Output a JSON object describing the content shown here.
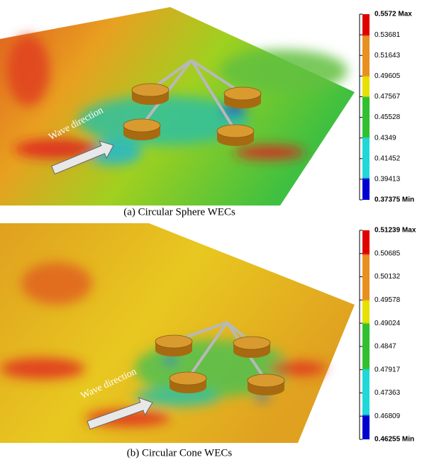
{
  "panels": [
    {
      "caption": "(a) Circular Sphere WECs",
      "annotation": "Wave direction",
      "colorbar": [
        "0.5572 Max",
        "0.53681",
        "0.51643",
        "0.49605",
        "0.47567",
        "0.45528",
        "0.4349",
        "0.41452",
        "0.39413",
        "0.37375 Min"
      ]
    },
    {
      "caption": "(b) Circular Cone WECs",
      "annotation": "Wave direction",
      "colorbar": [
        "0.51239 Max",
        "0.50685",
        "0.50132",
        "0.49578",
        "0.49024",
        "0.4847",
        "0.47917",
        "0.47363",
        "0.46809",
        "0.46255 Min"
      ]
    }
  ]
}
